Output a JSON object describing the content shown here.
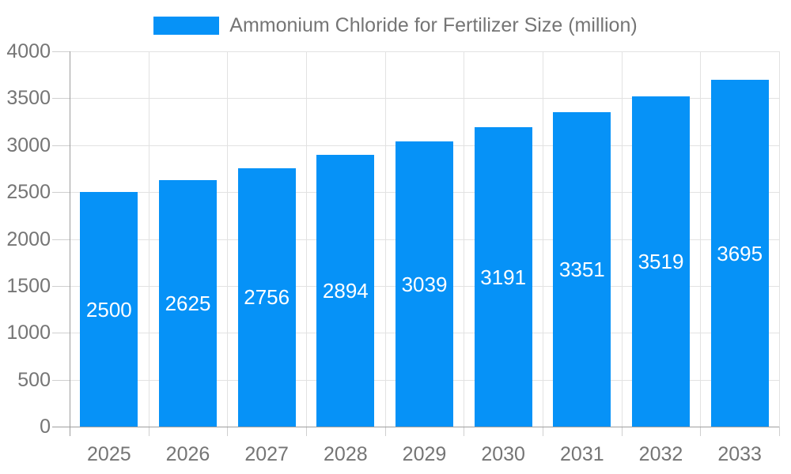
{
  "legend": {
    "label": "Ammonium Chloride for Fertilizer Size (million)"
  },
  "colors": {
    "bar": "#0692f7",
    "grid": "#e2e2e2",
    "axis": "#9e9e9e",
    "tick": "#cfcfcf",
    "text": "#757575",
    "bar_label": "#ffffff",
    "background": "#ffffff"
  },
  "chart_data": {
    "type": "bar",
    "title": "Ammonium Chloride for Fertilizer Size (million)",
    "categories": [
      "2025",
      "2026",
      "2027",
      "2028",
      "2029",
      "2030",
      "2031",
      "2032",
      "2033"
    ],
    "values": [
      2500,
      2625,
      2756,
      2894,
      3039,
      3191,
      3351,
      3519,
      3695
    ],
    "xlabel": "",
    "ylabel": "",
    "ylim": [
      0,
      4000
    ],
    "ytick_step": 500,
    "yticks": [
      0,
      500,
      1000,
      1500,
      2000,
      2500,
      3000,
      3500,
      4000
    ],
    "grid": true,
    "legend_position": "top-center",
    "value_labels": "inside-center"
  }
}
